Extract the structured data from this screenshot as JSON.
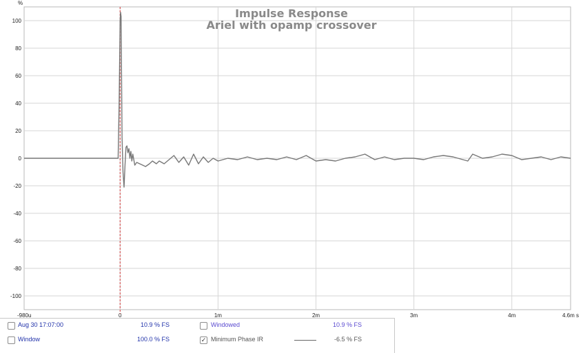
{
  "chart_data": {
    "type": "line",
    "title": "Impulse Response",
    "subtitle": "Ariel with opamp crossover",
    "ylabel": "%",
    "xlabel": "",
    "x_unit": "ms",
    "ylim": [
      -110,
      110
    ],
    "xlim": [
      -0.98,
      4.6
    ],
    "x_ticks": [
      {
        "value": -0.98,
        "label": "-980u"
      },
      {
        "value": 0,
        "label": "0"
      },
      {
        "value": 1,
        "label": "1m"
      },
      {
        "value": 2,
        "label": "2m"
      },
      {
        "value": 3,
        "label": "3m"
      },
      {
        "value": 4,
        "label": "4m"
      },
      {
        "value": 4.6,
        "label": "4.6m s"
      }
    ],
    "y_ticks": [
      100,
      80,
      60,
      40,
      20,
      0,
      -20,
      -40,
      -60,
      -80,
      -100
    ],
    "y_tick_labels": [
      "100",
      "80",
      "60",
      "40",
      "20",
      "0",
      "-20",
      "-40",
      "-60",
      "-80",
      "-100"
    ],
    "grid": true,
    "marker_line_x": 0,
    "series": [
      {
        "color": "#777777",
        "x": [
          -0.98,
          -0.02,
          -0.01,
          0,
          0.005,
          0.01,
          0.015,
          0.02,
          0.03,
          0.04,
          0.05,
          0.06,
          0.07,
          0.08,
          0.09,
          0.1,
          0.11,
          0.12,
          0.13,
          0.15,
          0.17,
          0.2,
          0.23,
          0.26,
          0.3,
          0.33,
          0.37,
          0.4,
          0.45,
          0.5,
          0.55,
          0.6,
          0.65,
          0.7,
          0.75,
          0.8,
          0.85,
          0.9,
          0.95,
          1.0,
          1.05,
          1.1,
          1.2,
          1.3,
          1.4,
          1.5,
          1.6,
          1.7,
          1.8,
          1.9,
          2.0,
          2.1,
          2.2,
          2.3,
          2.4,
          2.5,
          2.6,
          2.7,
          2.8,
          2.9,
          3.0,
          3.1,
          3.2,
          3.3,
          3.4,
          3.5,
          3.55,
          3.6,
          3.7,
          3.8,
          3.9,
          4.0,
          4.1,
          4.2,
          4.3,
          4.4,
          4.5,
          4.6
        ],
        "y": [
          0,
          0,
          40,
          100,
          106,
          103,
          60,
          15,
          -10,
          -21,
          -5,
          8,
          9,
          4,
          7,
          0,
          5,
          -2,
          3,
          -5,
          -3,
          -4,
          -5,
          -6,
          -4,
          -2,
          -4,
          -2,
          -4,
          -1,
          2,
          -3,
          1,
          -5,
          3,
          -4,
          1,
          -3,
          0,
          -2,
          -1,
          0,
          -1,
          1,
          -1,
          0,
          -1,
          1,
          -1,
          2,
          -2,
          -1,
          -2,
          0,
          1,
          3,
          -1,
          1,
          -1,
          0,
          0,
          -1,
          1,
          2,
          1,
          -1,
          -2,
          3,
          0,
          1,
          3,
          2,
          -1,
          0,
          1,
          -1,
          1,
          0
        ]
      }
    ]
  },
  "legend": {
    "row1": {
      "date": "Aug 30 17:07:00",
      "value1": "10.9 % FS",
      "check2_label": "Windowed",
      "value2": "10.9 % FS"
    },
    "row2": {
      "window_label": "Window",
      "value1": "100.0 % FS",
      "check2_label": "Minimum Phase IR",
      "value2": "-6.5 % FS",
      "checked_mark": "✓"
    }
  }
}
